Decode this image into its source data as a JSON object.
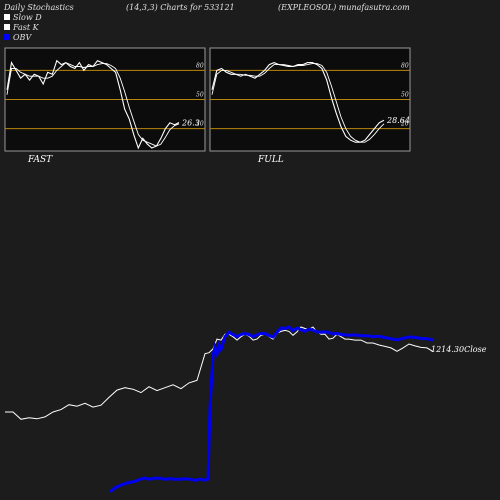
{
  "header": {
    "left": "Daily Stochastics",
    "center": "(14,3,3) Charts for 533121",
    "right": "(EXPLEOSOL) munafasutra.com"
  },
  "legend": [
    {
      "label": "Slow  D",
      "color": "#ffffff"
    },
    {
      "label": "Fast K",
      "color": "#ffffff"
    },
    {
      "label": "OBV",
      "color": "#0000ff"
    }
  ],
  "colors": {
    "background": "#1c1c1c",
    "panel": "#0c0c0c",
    "level_line": "#b8860b",
    "stoch_line": "#ffffff",
    "obv": "#0000ee",
    "close": "#ffffff"
  },
  "chart_data": [
    {
      "type": "line",
      "title": "FAST",
      "ylim": [
        0,
        100
      ],
      "y_ticks": [
        20,
        50,
        80
      ],
      "levels": [
        20,
        50,
        80
      ],
      "last_value_label": "26.3",
      "series": [
        {
          "name": "Fast K",
          "values": [
            60,
            88,
            80,
            72,
            76,
            70,
            76,
            74,
            66,
            78,
            76,
            90,
            86,
            88,
            84,
            82,
            88,
            80,
            86,
            84,
            90,
            88,
            86,
            82,
            78,
            60,
            40,
            30,
            14,
            0,
            10,
            4,
            0,
            2,
            10,
            20,
            26,
            24,
            26.3
          ]
        },
        {
          "name": "Slow  D",
          "values": [
            55,
            82,
            82,
            78,
            76,
            74,
            74,
            74,
            72,
            72,
            74,
            80,
            84,
            88,
            86,
            84,
            84,
            83,
            84,
            84,
            86,
            87,
            87,
            85,
            82,
            72,
            58,
            42,
            28,
            14,
            8,
            6,
            4,
            2,
            4,
            11,
            19,
            23,
            25
          ]
        }
      ]
    },
    {
      "type": "line",
      "title": "FULL",
      "ylim": [
        0,
        100
      ],
      "y_ticks": [
        20,
        50,
        80
      ],
      "levels": [
        20,
        50,
        80
      ],
      "last_value_label": "28.64",
      "series": [
        {
          "name": "Fast K",
          "values": [
            60,
            80,
            82,
            78,
            76,
            76,
            74,
            76,
            74,
            72,
            76,
            80,
            86,
            88,
            86,
            85,
            84,
            84,
            86,
            86,
            88,
            88,
            86,
            82,
            70,
            52,
            36,
            22,
            12,
            8,
            6,
            6,
            8,
            14,
            20,
            26,
            28.64
          ]
        },
        {
          "name": "Slow  D",
          "values": [
            55,
            76,
            80,
            80,
            78,
            76,
            76,
            75,
            75,
            74,
            74,
            77,
            82,
            86,
            86,
            86,
            85,
            84,
            85,
            85,
            86,
            87,
            87,
            85,
            78,
            64,
            48,
            32,
            20,
            12,
            8,
            6,
            6,
            9,
            14,
            20,
            25
          ]
        }
      ]
    },
    {
      "type": "line",
      "title": "",
      "last_value_label": "1214.30",
      "last_value_suffix": "Close",
      "series": [
        {
          "name": "Close",
          "x": [
            0,
            8,
            16,
            24,
            32,
            40,
            48,
            56,
            64,
            72,
            80,
            88,
            96,
            104,
            112,
            120,
            128,
            136,
            144,
            152,
            160,
            168,
            176,
            184,
            192,
            200,
            204,
            208,
            212,
            216,
            220,
            224,
            228,
            232,
            236,
            240,
            244,
            248,
            252,
            256,
            260,
            264,
            268,
            272,
            276,
            280,
            284,
            288,
            292,
            296,
            300,
            304,
            308,
            312,
            316,
            320,
            324,
            328,
            332,
            336,
            340,
            344,
            350,
            356,
            362,
            368,
            374,
            380,
            386,
            392,
            398,
            404,
            410,
            416,
            422,
            428
          ],
          "values": [
            1090,
            1090,
            1075,
            1078,
            1076,
            1080,
            1090,
            1095,
            1105,
            1102,
            1108,
            1100,
            1104,
            1120,
            1135,
            1140,
            1137,
            1130,
            1142,
            1134,
            1140,
            1146,
            1138,
            1150,
            1155,
            1210,
            1212,
            1220,
            1240,
            1238,
            1250,
            1250,
            1245,
            1238,
            1245,
            1250,
            1246,
            1238,
            1240,
            1248,
            1250,
            1245,
            1240,
            1252,
            1256,
            1258,
            1256,
            1248,
            1255,
            1265,
            1262,
            1260,
            1265,
            1255,
            1250,
            1250,
            1240,
            1242,
            1250,
            1245,
            1240,
            1240,
            1238,
            1238,
            1232,
            1232,
            1228,
            1225,
            1222,
            1215,
            1222,
            1230,
            1226,
            1223,
            1222,
            1214.3
          ]
        },
        {
          "name": "OBV",
          "x": [
            105,
            110,
            115,
            120,
            125,
            130,
            135,
            140,
            145,
            150,
            155,
            160,
            165,
            170,
            175,
            180,
            185,
            190,
            195,
            200,
            203,
            205,
            208,
            210,
            212,
            214,
            216,
            218,
            220,
            224,
            228,
            232,
            236,
            240,
            244,
            248,
            252,
            256,
            260,
            264,
            268,
            272,
            276,
            280,
            284,
            288,
            292,
            296,
            300,
            304,
            308,
            312,
            316,
            320,
            324,
            328,
            332,
            336,
            340,
            344,
            350,
            356,
            362,
            368,
            374,
            380,
            386,
            392,
            398,
            404,
            410,
            416,
            422,
            428
          ],
          "values": [
            500,
            520,
            530,
            540,
            545,
            550,
            560,
            565,
            560,
            565,
            565,
            560,
            562,
            560,
            560,
            562,
            560,
            555,
            560,
            556,
            560,
            900,
            1140,
            1180,
            1150,
            1190,
            1170,
            1200,
            1230,
            1250,
            1240,
            1230,
            1240,
            1245,
            1240,
            1230,
            1238,
            1245,
            1244,
            1235,
            1228,
            1250,
            1270,
            1268,
            1275,
            1258,
            1270,
            1262,
            1255,
            1265,
            1260,
            1252,
            1250,
            1252,
            1250,
            1242,
            1245,
            1240,
            1238,
            1236,
            1238,
            1234,
            1234,
            1230,
            1232,
            1225,
            1220,
            1215,
            1222,
            1228,
            1226,
            1221,
            1220,
            1214
          ]
        }
      ]
    }
  ]
}
